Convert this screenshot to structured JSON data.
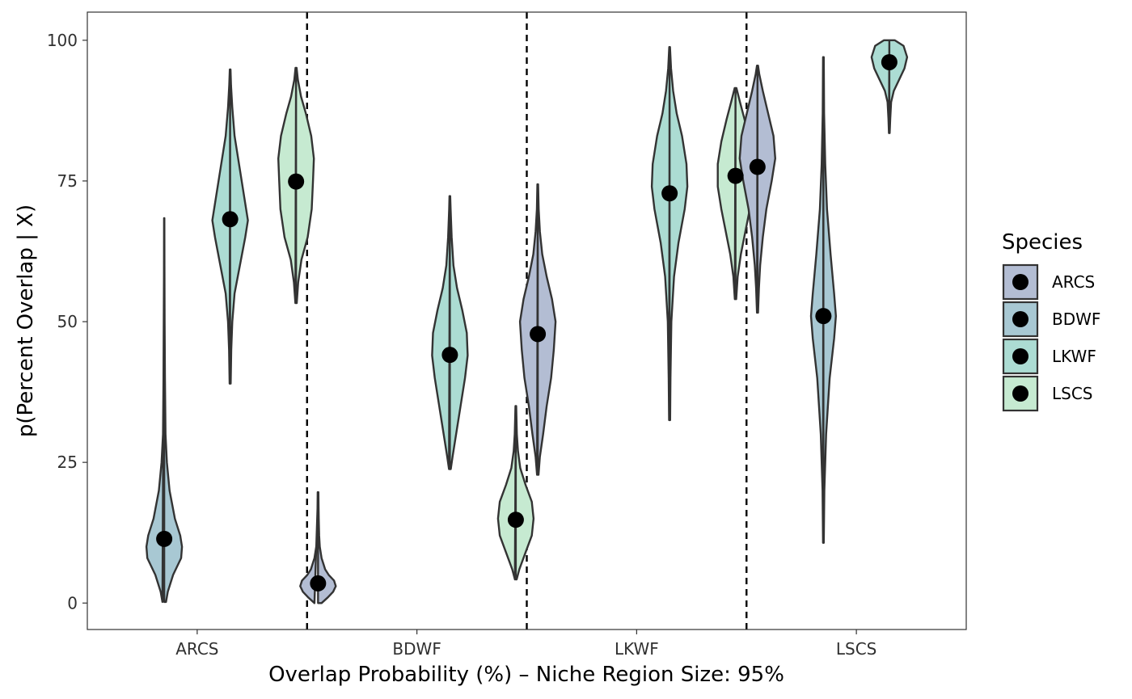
{
  "chart_data": {
    "type": "violin",
    "xlabel": "Overlap Probability (%) – Niche Region Size: 95%",
    "ylabel": "p(Percent Overlap | X)",
    "ylim": [
      -4.7,
      105
    ],
    "yticks": [
      0,
      25,
      50,
      75,
      100
    ],
    "categories": [
      "ARCS",
      "BDWF",
      "LKWF",
      "LSCS"
    ],
    "legend": {
      "title": "Species",
      "position": "right",
      "entries": [
        {
          "label": "ARCS",
          "color": "#b3bdd3"
        },
        {
          "label": "BDWF",
          "color": "#a8c8d3"
        },
        {
          "label": "LKWF",
          "color": "#acdcd3"
        },
        {
          "label": "LSCS",
          "color": "#c6ead1"
        }
      ]
    },
    "dividers": [
      "ARCS|BDWF",
      "BDWF|LKWF",
      "LKWF|LSCS"
    ],
    "violins": [
      {
        "category": "ARCS",
        "species": "BDWF",
        "median": 11.4,
        "min": 0.2,
        "max": 68.4,
        "profile": [
          [
            0.2,
            0.1
          ],
          [
            2,
            0.2
          ],
          [
            5,
            0.5
          ],
          [
            8,
            0.95
          ],
          [
            10,
            1.0
          ],
          [
            12,
            0.9
          ],
          [
            15,
            0.6
          ],
          [
            20,
            0.3
          ],
          [
            25,
            0.15
          ],
          [
            30,
            0.07
          ],
          [
            40,
            0.04
          ],
          [
            50,
            0.02
          ],
          [
            60,
            0.015
          ],
          [
            68.4,
            0.01
          ]
        ]
      },
      {
        "category": "ARCS",
        "species": "LKWF",
        "median": 68.2,
        "min": 39.0,
        "max": 94.8,
        "profile": [
          [
            39,
            0.03
          ],
          [
            45,
            0.06
          ],
          [
            50,
            0.12
          ],
          [
            55,
            0.25
          ],
          [
            60,
            0.55
          ],
          [
            65,
            0.85
          ],
          [
            68,
            1.0
          ],
          [
            72,
            0.8
          ],
          [
            78,
            0.5
          ],
          [
            83,
            0.25
          ],
          [
            88,
            0.12
          ],
          [
            92,
            0.05
          ],
          [
            94.8,
            0.02
          ]
        ]
      },
      {
        "category": "ARCS",
        "species": "LSCS",
        "median": 74.9,
        "min": 53.3,
        "max": 95.1,
        "profile": [
          [
            53.3,
            0.04
          ],
          [
            57,
            0.12
          ],
          [
            61,
            0.3
          ],
          [
            65,
            0.65
          ],
          [
            70,
            0.88
          ],
          [
            75,
            0.95
          ],
          [
            79,
            1.0
          ],
          [
            83,
            0.85
          ],
          [
            87,
            0.55
          ],
          [
            90,
            0.28
          ],
          [
            93,
            0.1
          ],
          [
            95.1,
            0.03
          ]
        ]
      },
      {
        "category": "BDWF",
        "species": "ARCS",
        "median": 3.5,
        "min": 0.0,
        "max": 19.7,
        "profile": [
          [
            0,
            0.2
          ],
          [
            1,
            0.55
          ],
          [
            2,
            0.85
          ],
          [
            3,
            1.0
          ],
          [
            4,
            0.9
          ],
          [
            5,
            0.6
          ],
          [
            6,
            0.4
          ],
          [
            7,
            0.3
          ],
          [
            8,
            0.2
          ],
          [
            10,
            0.1
          ],
          [
            12,
            0.06
          ],
          [
            15,
            0.04
          ],
          [
            17,
            0.03
          ],
          [
            19.7,
            0.02
          ]
        ]
      },
      {
        "category": "BDWF",
        "species": "LKWF",
        "median": 44.1,
        "min": 23.8,
        "max": 72.3,
        "profile": [
          [
            23.8,
            0.05
          ],
          [
            26,
            0.15
          ],
          [
            30,
            0.35
          ],
          [
            35,
            0.6
          ],
          [
            40,
            0.85
          ],
          [
            44,
            1.0
          ],
          [
            48,
            0.95
          ],
          [
            52,
            0.7
          ],
          [
            56,
            0.4
          ],
          [
            60,
            0.2
          ],
          [
            65,
            0.1
          ],
          [
            70,
            0.04
          ],
          [
            72.3,
            0.02
          ]
        ]
      },
      {
        "category": "BDWF",
        "species": "LSCS",
        "median": 14.8,
        "min": 4.2,
        "max": 35.0,
        "profile": [
          [
            4.2,
            0.05
          ],
          [
            6,
            0.2
          ],
          [
            9,
            0.55
          ],
          [
            12,
            0.9
          ],
          [
            15,
            1.0
          ],
          [
            18,
            0.9
          ],
          [
            21,
            0.55
          ],
          [
            24,
            0.25
          ],
          [
            27,
            0.12
          ],
          [
            30,
            0.06
          ],
          [
            35,
            0.02
          ]
        ]
      },
      {
        "category": "LKWF",
        "species": "ARCS",
        "median": 47.8,
        "min": 22.8,
        "max": 74.4,
        "profile": [
          [
            22.8,
            0.04
          ],
          [
            26,
            0.12
          ],
          [
            30,
            0.3
          ],
          [
            35,
            0.5
          ],
          [
            40,
            0.75
          ],
          [
            45,
            0.9
          ],
          [
            50,
            1.0
          ],
          [
            54,
            0.8
          ],
          [
            58,
            0.5
          ],
          [
            62,
            0.25
          ],
          [
            66,
            0.12
          ],
          [
            70,
            0.05
          ],
          [
            74.4,
            0.02
          ]
        ]
      },
      {
        "category": "LKWF",
        "species": "LKWF",
        "median": 72.8,
        "min": 32.5,
        "max": 98.8,
        "profile": [
          [
            32.5,
            0.03
          ],
          [
            40,
            0.05
          ],
          [
            50,
            0.1
          ],
          [
            58,
            0.25
          ],
          [
            64,
            0.5
          ],
          [
            70,
            0.85
          ],
          [
            74,
            1.0
          ],
          [
            78,
            0.95
          ],
          [
            83,
            0.7
          ],
          [
            87,
            0.4
          ],
          [
            91,
            0.2
          ],
          [
            95,
            0.08
          ],
          [
            98.8,
            0.02
          ]
        ]
      },
      {
        "category": "LKWF",
        "species": "LSCS",
        "median": 75.9,
        "min": 54.0,
        "max": 91.5,
        "profile": [
          [
            54,
            0.04
          ],
          [
            58,
            0.12
          ],
          [
            62,
            0.3
          ],
          [
            66,
            0.55
          ],
          [
            70,
            0.8
          ],
          [
            74,
            1.0
          ],
          [
            78,
            1.0
          ],
          [
            82,
            0.8
          ],
          [
            86,
            0.5
          ],
          [
            89,
            0.25
          ],
          [
            91.5,
            0.05
          ]
        ]
      },
      {
        "category": "LSCS",
        "species": "ARCS",
        "median": 77.5,
        "min": 51.6,
        "max": 95.5,
        "profile": [
          [
            51.6,
            0.03
          ],
          [
            56,
            0.08
          ],
          [
            60,
            0.15
          ],
          [
            65,
            0.3
          ],
          [
            70,
            0.5
          ],
          [
            75,
            0.8
          ],
          [
            79,
            1.0
          ],
          [
            83,
            0.9
          ],
          [
            87,
            0.6
          ],
          [
            91,
            0.3
          ],
          [
            94,
            0.1
          ],
          [
            95.5,
            0.03
          ]
        ]
      },
      {
        "category": "LSCS",
        "species": "BDWF",
        "median": 51.0,
        "min": 10.7,
        "max": 97.0,
        "profile": [
          [
            10.7,
            0.02
          ],
          [
            20,
            0.05
          ],
          [
            30,
            0.15
          ],
          [
            40,
            0.35
          ],
          [
            47,
            0.6
          ],
          [
            51,
            0.7
          ],
          [
            55,
            0.6
          ],
          [
            62,
            0.4
          ],
          [
            70,
            0.2
          ],
          [
            78,
            0.1
          ],
          [
            87,
            0.04
          ],
          [
            97,
            0.02
          ]
        ]
      },
      {
        "category": "LSCS",
        "species": "LKWF",
        "median": 96.1,
        "min": 83.5,
        "max": 100.0,
        "profile": [
          [
            83.5,
            0.02
          ],
          [
            86,
            0.05
          ],
          [
            89,
            0.1
          ],
          [
            91,
            0.25
          ],
          [
            93,
            0.55
          ],
          [
            95,
            0.85
          ],
          [
            97,
            1.0
          ],
          [
            99,
            0.8
          ],
          [
            100,
            0.3
          ]
        ]
      }
    ]
  }
}
